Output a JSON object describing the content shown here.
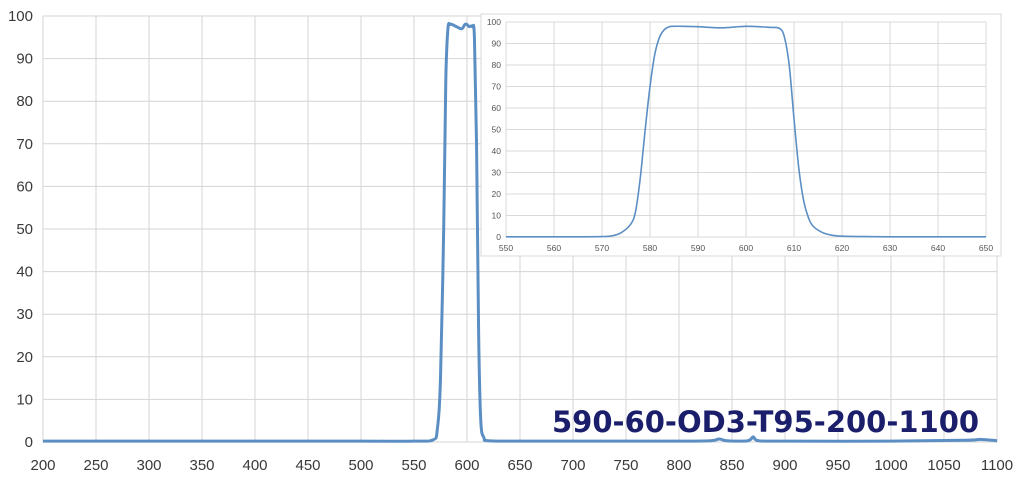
{
  "chart_data": [
    {
      "type": "line",
      "title": "",
      "xlabel": "",
      "ylabel": "",
      "xlim": [
        200,
        1100
      ],
      "ylim": [
        0,
        100
      ],
      "x_ticks": [
        200,
        250,
        300,
        350,
        400,
        450,
        500,
        550,
        600,
        650,
        700,
        750,
        800,
        850,
        900,
        950,
        1000,
        1050,
        1100
      ],
      "y_ticks": [
        0,
        10,
        20,
        30,
        40,
        50,
        60,
        70,
        80,
        90,
        100
      ],
      "grid": true,
      "legend": "none",
      "series": [
        {
          "color": "#5b8fc4",
          "x": [
            200,
            300,
            400,
            500,
            550,
            568,
            572,
            575,
            578,
            580,
            582,
            584,
            586,
            590,
            595,
            598,
            600,
            602,
            605,
            607,
            609,
            611,
            613,
            616,
            620,
            650,
            700,
            800,
            830,
            838,
            845,
            865,
            870,
            875,
            900,
            1000,
            1070,
            1085,
            1100
          ],
          "y": [
            0.2,
            0.2,
            0.2,
            0.2,
            0.2,
            0.5,
            3,
            15,
            50,
            85,
            97,
            98,
            98,
            97.5,
            97,
            98,
            98,
            97.5,
            97.5,
            95,
            70,
            25,
            5,
            1,
            0.3,
            0.2,
            0.2,
            0.2,
            0.3,
            0.7,
            0.3,
            0.3,
            1.2,
            0.3,
            0.2,
            0.2,
            0.4,
            0.6,
            0.3
          ]
        }
      ],
      "annotation": "590-60-OD3-T95-200-1100",
      "annotation_color": "#1b1f6b"
    },
    {
      "type": "line",
      "title": "",
      "xlabel": "",
      "ylabel": "",
      "xlim": [
        550,
        650
      ],
      "ylim": [
        0,
        100
      ],
      "x_ticks": [
        550,
        560,
        570,
        580,
        590,
        600,
        610,
        620,
        630,
        640,
        650
      ],
      "y_ticks": [
        0,
        10,
        20,
        30,
        40,
        50,
        60,
        70,
        80,
        90,
        100
      ],
      "grid": true,
      "legend": "none",
      "series": [
        {
          "color": "#5b8fc4",
          "x": [
            550,
            560,
            565,
            570,
            572,
            574,
            576,
            577,
            578,
            579,
            580,
            581,
            582,
            583,
            584,
            585,
            587,
            590,
            595,
            600,
            605,
            607,
            608,
            609,
            610,
            611,
            612,
            613,
            614,
            616,
            618,
            620,
            625,
            630,
            640,
            650
          ],
          "y": [
            0.1,
            0.1,
            0.1,
            0.2,
            0.5,
            2,
            6,
            12,
            28,
            50,
            70,
            85,
            93,
            96.5,
            97.8,
            98,
            98,
            97.8,
            97.3,
            98,
            97.5,
            97,
            93,
            80,
            55,
            32,
            17,
            9,
            5,
            2,
            0.8,
            0.4,
            0.2,
            0.1,
            0.1,
            0.1
          ]
        }
      ]
    }
  ]
}
